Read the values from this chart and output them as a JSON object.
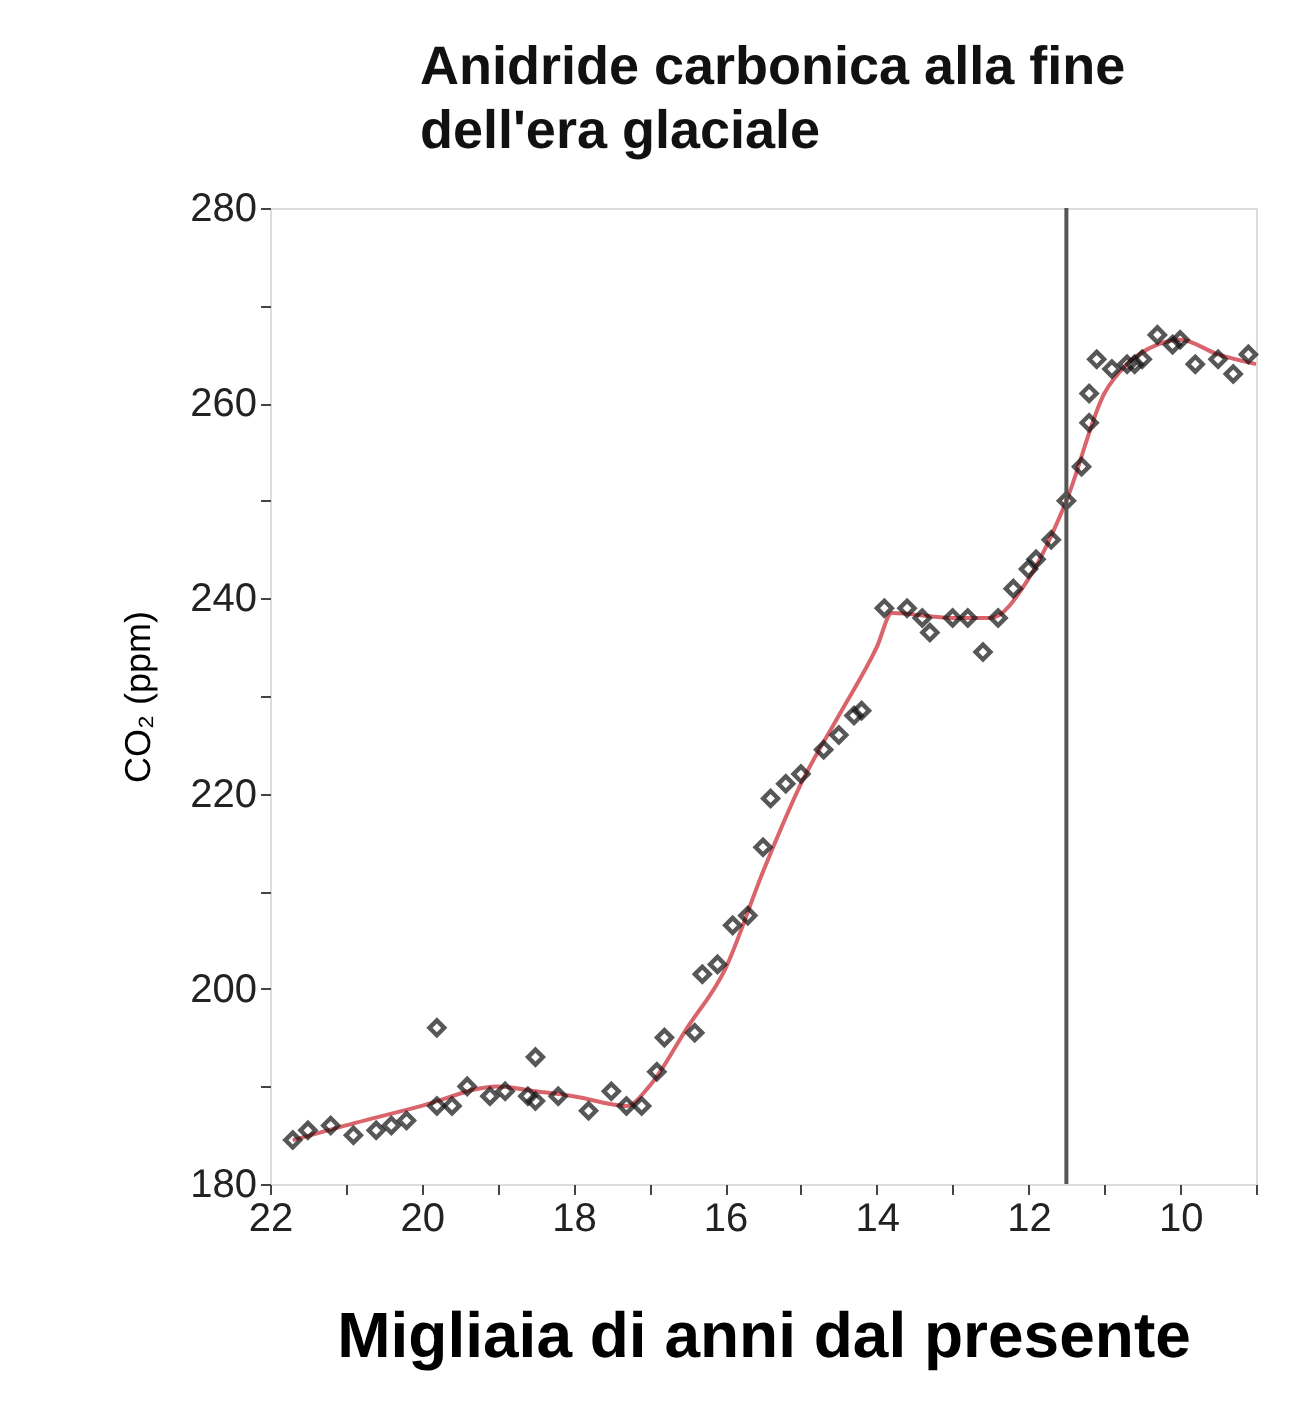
{
  "chart_data": {
    "type": "scatter",
    "title": "Anidride carbonica alla fine dell'era glaciale",
    "xlabel": "Migliaia di anni dal presente",
    "ylabel": "CO₂ (ppm)",
    "xlim": [
      22,
      9
    ],
    "ylim": [
      180,
      280
    ],
    "xticks": [
      22,
      {
        "value": 21,
        "label": null
      },
      20,
      {
        "value": 19,
        "label": null
      },
      18,
      {
        "value": 17,
        "label": null
      },
      16,
      {
        "value": 15,
        "label": null
      },
      14,
      {
        "value": 13,
        "label": null
      },
      12,
      {
        "value": 11,
        "label": null
      },
      10,
      {
        "value": 9,
        "label": null
      }
    ],
    "yticks": [
      180,
      {
        "value": 190,
        "label": null
      },
      200,
      {
        "value": 210,
        "label": null
      },
      220,
      {
        "value": 230,
        "label": null
      },
      240,
      {
        "value": 250,
        "label": null
      },
      260,
      {
        "value": 270,
        "label": null
      },
      280
    ],
    "grid": false,
    "marker": "diamond",
    "ref_lines": [
      {
        "axis": "x",
        "value": 11.5,
        "color": "#555555"
      }
    ],
    "series": [
      {
        "type": "line",
        "color": "#d9646b",
        "line_style": "solid",
        "marker": "none",
        "x": [
          21.7,
          21,
          20,
          19,
          18.5,
          18,
          17.3,
          17,
          16.5,
          16,
          15.5,
          15,
          14.5,
          14,
          13.8,
          13,
          12.5,
          12,
          11.5,
          11,
          10.7,
          10.3,
          10,
          9.5,
          9
        ],
        "values": [
          184.5,
          186,
          188,
          190,
          189.5,
          189,
          188,
          190,
          196,
          202,
          212,
          221,
          228,
          235,
          238.5,
          238,
          238,
          242,
          250,
          261,
          264,
          266,
          266.5,
          265,
          264
        ]
      },
      {
        "color": "#111111",
        "x": [
          21.7,
          21.5,
          21.2,
          20.9,
          20.6,
          20.4,
          20.2,
          19.8,
          19.8,
          19.6,
          19.4,
          19.1,
          18.9,
          18.6,
          18.5,
          18.5,
          18.2,
          17.8,
          17.5,
          17.3,
          17.1,
          16.9,
          16.8,
          16.4,
          16.3,
          16.1,
          15.9,
          15.7,
          15.5,
          15.4,
          15.2,
          15.0,
          14.7,
          14.5,
          14.3,
          14.2,
          13.9,
          13.6,
          13.4,
          13.3,
          13.0,
          12.8,
          12.6,
          12.4,
          12.2,
          12.0,
          11.9,
          11.7,
          11.5,
          11.3,
          11.2,
          11.2,
          11.1,
          10.9,
          10.7,
          10.6,
          10.5,
          10.3,
          10.1,
          10.0,
          9.8,
          9.5,
          9.3,
          9.1
        ],
        "values": [
          184.5,
          185.5,
          186,
          185,
          185.5,
          186,
          186.5,
          196,
          188,
          188,
          190,
          189,
          189.5,
          189,
          193,
          188.5,
          189,
          187.5,
          189.5,
          188,
          188,
          191.5,
          195,
          195.5,
          201.5,
          202.5,
          206.5,
          207.5,
          214.5,
          219.5,
          221,
          222,
          224.5,
          226,
          228,
          228.5,
          239,
          239,
          238,
          236.5,
          238,
          238,
          234.5,
          238,
          241,
          243,
          244,
          246,
          250,
          253.5,
          258,
          261,
          264.5,
          263.5,
          264,
          264,
          264.5,
          267,
          266,
          266.5,
          264,
          264.5,
          263,
          265
        ]
      }
    ]
  }
}
